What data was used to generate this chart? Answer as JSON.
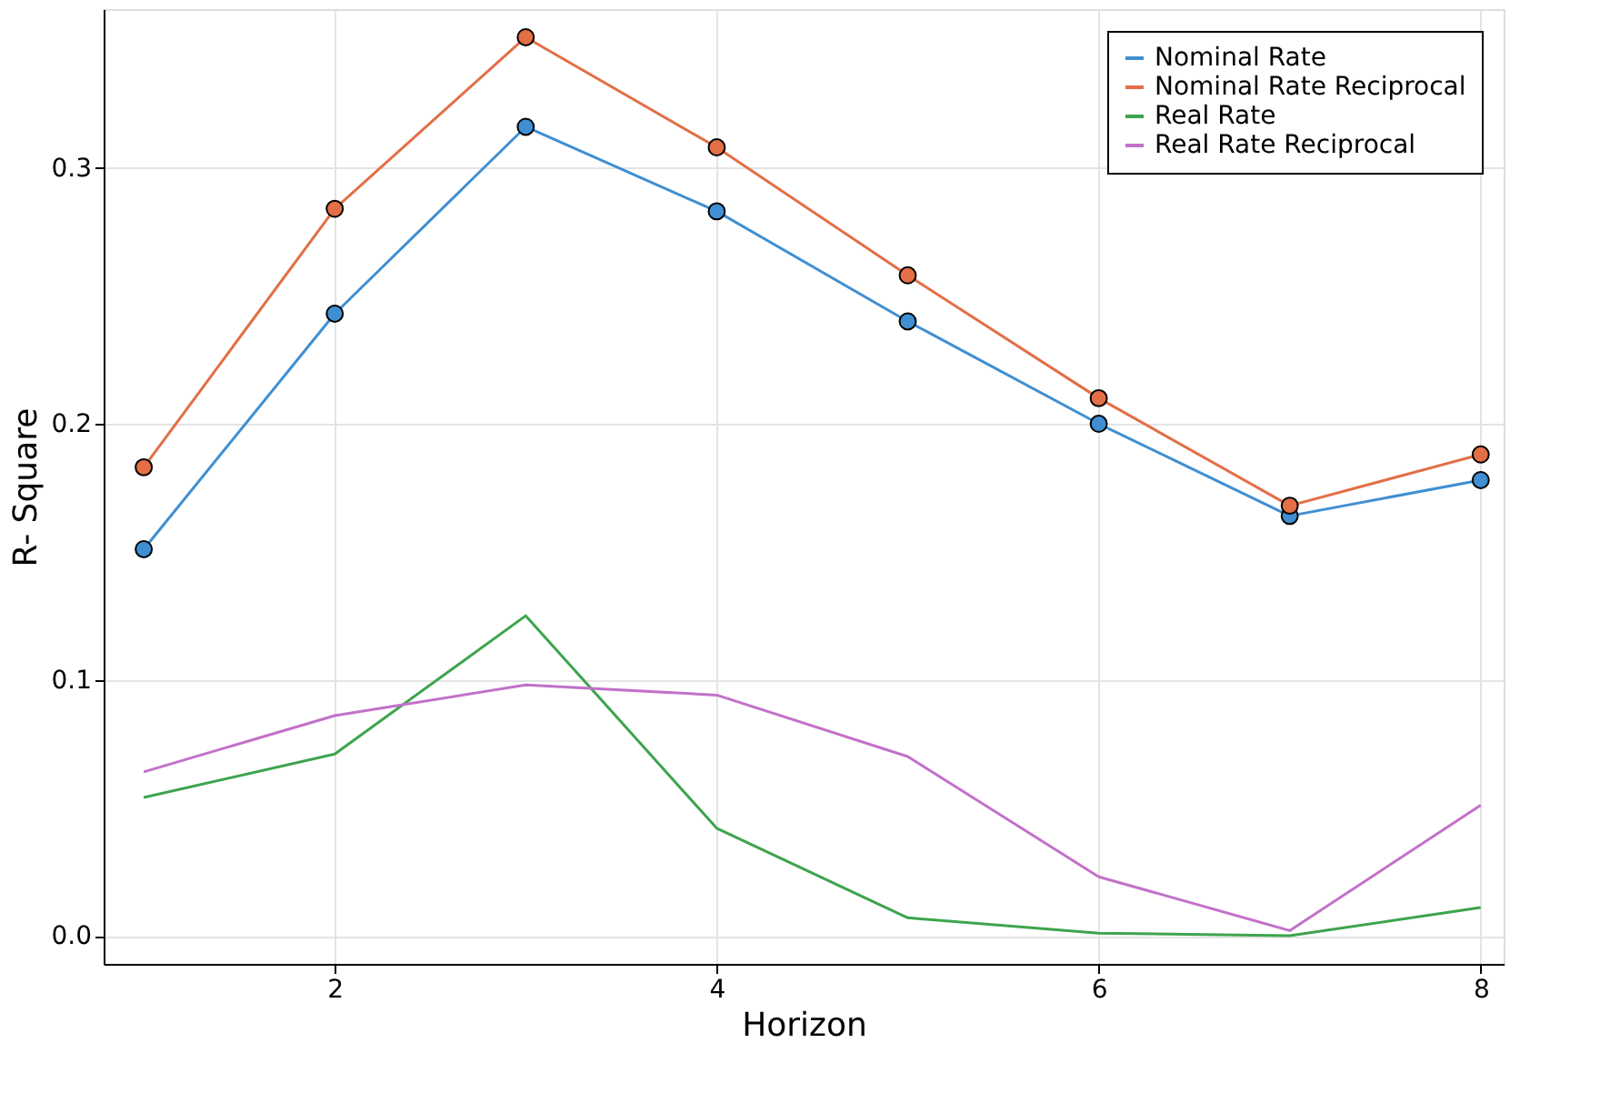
{
  "chart_data": {
    "type": "line",
    "xlabel": "Horizon",
    "ylabel": "R- Square",
    "x": [
      1,
      2,
      3,
      4,
      5,
      6,
      7,
      8
    ],
    "series": [
      {
        "name": "Nominal Rate",
        "color": "#3f8fd2",
        "marker": "circle",
        "values": [
          0.151,
          0.243,
          0.316,
          0.283,
          0.24,
          0.2,
          0.164,
          0.178
        ]
      },
      {
        "name": "Nominal Rate Reciprocal",
        "color": "#e26f46",
        "marker": "circle",
        "values": [
          0.183,
          0.284,
          0.351,
          0.308,
          0.258,
          0.21,
          0.168,
          0.188
        ]
      },
      {
        "name": "Real Rate",
        "color": "#3da44d",
        "marker": "none",
        "values": [
          0.054,
          0.071,
          0.125,
          0.042,
          0.007,
          0.001,
          0.0,
          0.011
        ]
      },
      {
        "name": "Real Rate Reciprocal",
        "color": "#c271c9",
        "marker": "none",
        "values": [
          0.064,
          0.086,
          0.098,
          0.094,
          0.07,
          0.023,
          0.002,
          0.051
        ]
      }
    ],
    "xlim": [
      0.79,
      8.12
    ],
    "xticks": [
      2,
      4,
      6,
      8
    ],
    "ylim": [
      -0.011,
      0.362
    ],
    "yticks": [
      {
        "value": 0,
        "label": "0.0"
      },
      {
        "value": 0.1,
        "label": "0.1"
      },
      {
        "value": 0.2,
        "label": "0.2"
      },
      {
        "value": 0.3,
        "label": "0.3"
      }
    ],
    "grid": true,
    "legend": "top right",
    "line_style": "solid"
  }
}
